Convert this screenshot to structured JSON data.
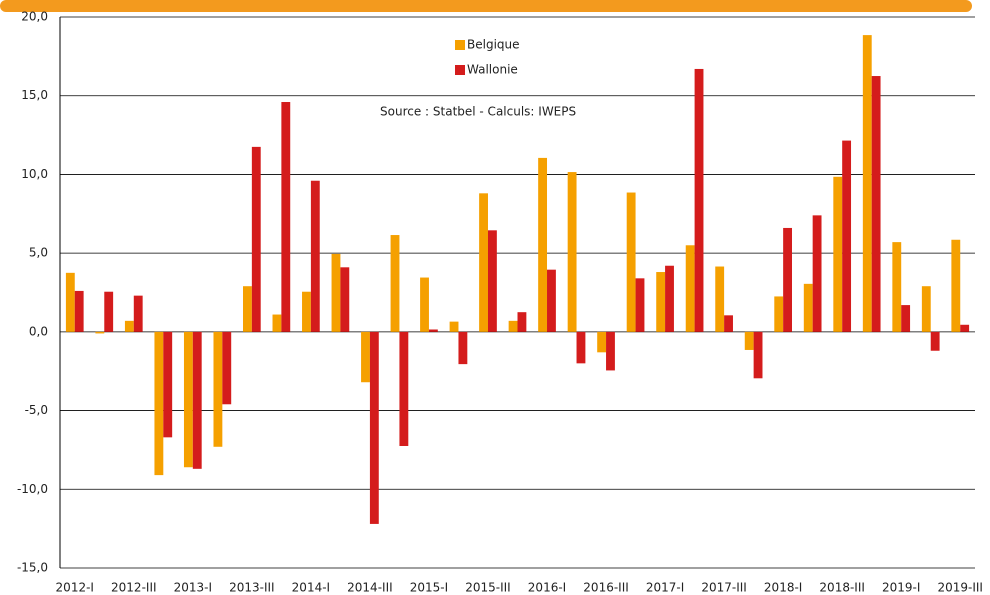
{
  "chart_data": {
    "type": "bar",
    "source": "Source : Statbel - Calculs: IWEPS",
    "categories": [
      "2012-I",
      null,
      "2012-III",
      null,
      "2013-I",
      null,
      "2013-III",
      null,
      "2014-I",
      null,
      "2014-III",
      null,
      "2015-I",
      null,
      "2015-III",
      null,
      "2016-I",
      null,
      "2016-III",
      null,
      "2017-I",
      null,
      "2017-III",
      null,
      "2018-I",
      null,
      "2018-III",
      null,
      "2019-I",
      null,
      "2019-III"
    ],
    "series": [
      {
        "name": "Belgique",
        "color": "#f5a000",
        "values": [
          3.75,
          -0.1,
          0.7,
          -9.1,
          -8.6,
          -7.3,
          2.9,
          1.1,
          2.55,
          4.95,
          -3.2,
          6.15,
          3.45,
          0.65,
          8.8,
          0.7,
          11.05,
          10.15,
          -1.3,
          8.85,
          3.8,
          5.5,
          4.15,
          -1.15,
          2.25,
          3.05,
          9.85,
          18.85,
          5.7,
          2.9,
          5.85
        ]
      },
      {
        "name": "Wallonie",
        "color": "#d41c1c",
        "values": [
          2.6,
          2.55,
          2.3,
          -6.7,
          -8.7,
          -4.6,
          11.75,
          14.6,
          9.6,
          4.1,
          -12.2,
          -7.25,
          0.15,
          -2.05,
          6.45,
          1.25,
          3.95,
          -2.0,
          -2.45,
          3.4,
          4.2,
          16.7,
          1.05,
          -2.95,
          6.6,
          7.4,
          12.15,
          16.25,
          1.7,
          -1.2,
          0.45
        ]
      }
    ],
    "ylim": [
      -15,
      20
    ],
    "yticks": [
      {
        "value": -15,
        "label": "-15,0"
      },
      {
        "value": -10,
        "label": "-10,0"
      },
      {
        "value": -5,
        "label": "-5,0"
      },
      {
        "value": 0,
        "label": "0,0"
      },
      {
        "value": 5,
        "label": "5,0"
      },
      {
        "value": 10,
        "label": "10,0"
      },
      {
        "value": 15,
        "label": "15,0"
      },
      {
        "value": 20,
        "label": "20,0"
      }
    ],
    "grid": true
  }
}
